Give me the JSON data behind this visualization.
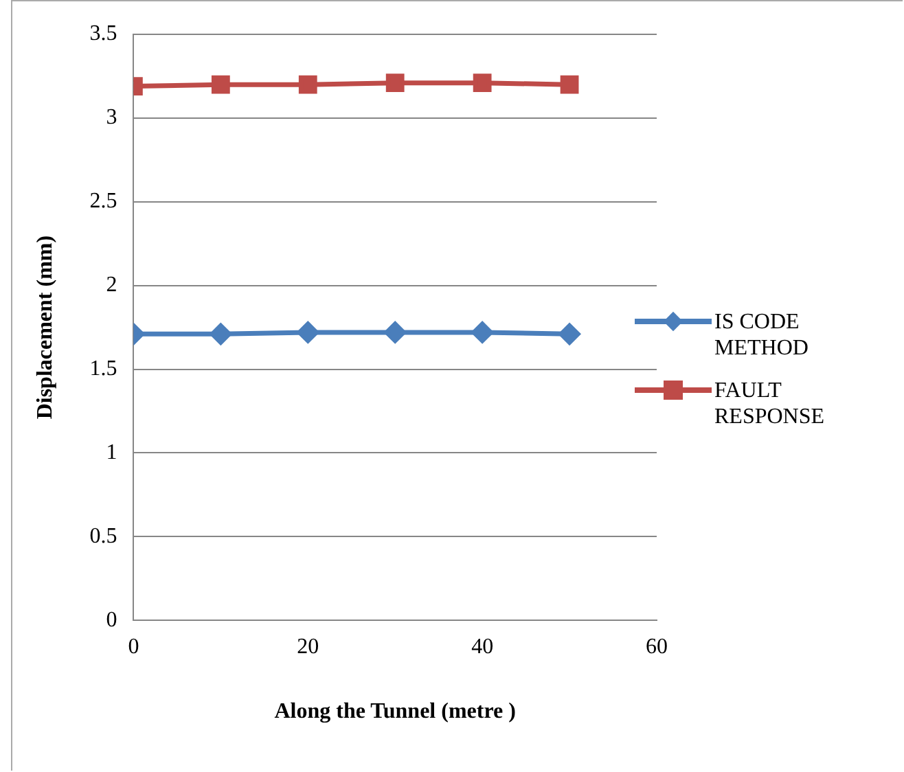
{
  "chart_data": {
    "type": "line",
    "xlabel": "Along the Tunnel (metre )",
    "ylabel": "Displacement (mm)",
    "x": [
      0,
      10,
      20,
      30,
      40,
      50
    ],
    "series": [
      {
        "name": "IS CODE METHOD",
        "color": "#4a7ebb",
        "values": [
          1.71,
          1.71,
          1.72,
          1.72,
          1.72,
          1.71
        ],
        "marker": "diamond"
      },
      {
        "name": "FAULT RESPONSE",
        "color": "#be4b48",
        "values": [
          3.19,
          3.2,
          3.2,
          3.21,
          3.21,
          3.2
        ],
        "marker": "square"
      }
    ],
    "xlim": [
      0,
      60
    ],
    "xticks": [
      0,
      20,
      40,
      60
    ],
    "ylim": [
      0,
      3.5
    ],
    "yticks": [
      0,
      0.5,
      1,
      1.5,
      2,
      2.5,
      3,
      3.5
    ],
    "grid": "y",
    "legend": "right",
    "line_style": "solid"
  }
}
